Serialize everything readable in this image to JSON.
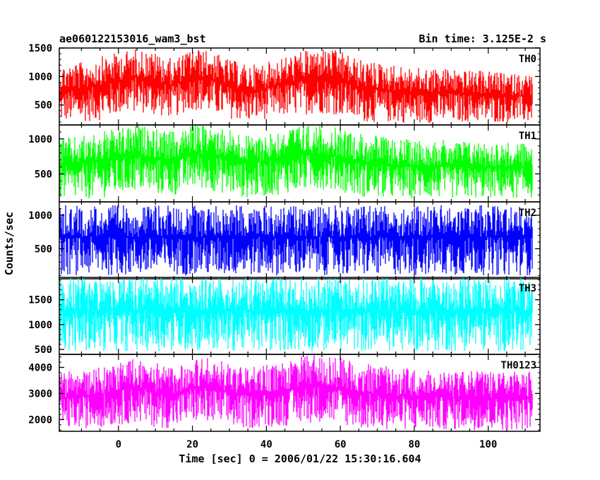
{
  "chart_data": {
    "type": "line",
    "title": "ae060122153016_wam3_bst",
    "subtitle": "Bin time: 3.125E-2 s",
    "xlabel": "Time [sec] 0 = 2006/01/22 15:30:16.604",
    "ylabel": "Counts/sec",
    "xlim": [
      -16,
      114
    ],
    "x_ticks": [
      0,
      20,
      40,
      60,
      80,
      100
    ],
    "x_tick_labels": [
      "0",
      "20",
      "40",
      "60",
      "80",
      "100"
    ],
    "series": [
      {
        "name": "TH0",
        "color": "#ff0000",
        "ylim": [
          150,
          1500
        ],
        "y_ticks": [
          500,
          1000,
          1500
        ],
        "y_tick_labels": [
          "500",
          "1000",
          "1500"
        ],
        "envelope": {
          "x": [
            -16,
            -10,
            -5,
            0,
            5,
            10,
            15,
            20,
            25,
            30,
            35,
            40,
            45,
            50,
            55,
            60,
            65,
            70,
            75,
            80,
            85,
            90,
            95,
            100,
            105,
            112
          ],
          "low": [
            200,
            200,
            230,
            330,
            380,
            300,
            280,
            420,
            350,
            260,
            200,
            250,
            300,
            330,
            350,
            320,
            200,
            190,
            190,
            180,
            180,
            190,
            200,
            190,
            190,
            190
          ],
          "high": [
            1200,
            1250,
            1350,
            1420,
            1500,
            1420,
            1300,
            1500,
            1450,
            1300,
            1200,
            1250,
            1350,
            1450,
            1500,
            1450,
            1300,
            1250,
            1200,
            1150,
            1150,
            1150,
            1100,
            1100,
            1050,
            1050
          ]
        }
      },
      {
        "name": "TH1",
        "color": "#00ff00",
        "ylim": [
          100,
          1200
        ],
        "y_ticks": [
          500,
          1000
        ],
        "y_tick_labels": [
          "500",
          "1000"
        ],
        "envelope": {
          "x": [
            -16,
            -10,
            -5,
            0,
            5,
            10,
            15,
            20,
            25,
            30,
            35,
            40,
            45,
            50,
            55,
            60,
            65,
            70,
            75,
            80,
            85,
            90,
            95,
            100,
            105,
            112
          ],
          "low": [
            130,
            130,
            150,
            200,
            260,
            200,
            180,
            300,
            260,
            200,
            150,
            180,
            220,
            260,
            280,
            250,
            170,
            150,
            150,
            150,
            150,
            150,
            150,
            150,
            150,
            150
          ],
          "high": [
            1000,
            1050,
            1100,
            1150,
            1200,
            1150,
            1100,
            1200,
            1200,
            1150,
            1050,
            1100,
            1150,
            1200,
            1200,
            1150,
            1100,
            1050,
            1000,
            1000,
            1000,
            980,
            980,
            960,
            950,
            950
          ]
        }
      },
      {
        "name": "TH2",
        "color": "#0000ff",
        "ylim": [
          50,
          1200
        ],
        "y_ticks": [
          500,
          1000
        ],
        "y_tick_labels": [
          "500",
          "1000"
        ],
        "envelope": {
          "x": [
            -16,
            112
          ],
          "low": [
            100,
            100
          ],
          "high": [
            1150,
            1150
          ]
        }
      },
      {
        "name": "TH3",
        "color": "#00ffff",
        "ylim": [
          400,
          1950
        ],
        "y_ticks": [
          500,
          1000,
          1500
        ],
        "y_tick_labels": [
          "500",
          "1000",
          "1500"
        ],
        "envelope": {
          "x": [
            -16,
            112
          ],
          "low": [
            460,
            460
          ],
          "high": [
            1950,
            1950
          ]
        }
      },
      {
        "name": "TH0123",
        "color": "#ff00ff",
        "ylim": [
          1550,
          4500
        ],
        "y_ticks": [
          2000,
          3000,
          4000
        ],
        "y_tick_labels": [
          "2000",
          "3000",
          "4000"
        ],
        "envelope": {
          "x": [
            -16,
            -10,
            -5,
            0,
            5,
            10,
            15,
            20,
            25,
            30,
            35,
            40,
            45,
            50,
            55,
            60,
            65,
            70,
            75,
            80,
            85,
            90,
            95,
            100,
            105,
            112
          ],
          "low": [
            1650,
            1650,
            1700,
            1800,
            1850,
            1700,
            1650,
            1900,
            1800,
            1700,
            1650,
            1700,
            1750,
            1850,
            1900,
            1800,
            1650,
            1600,
            1600,
            1600,
            1600,
            1600,
            1600,
            1600,
            1600,
            1600
          ],
          "high": [
            3800,
            3900,
            4000,
            4200,
            4400,
            4200,
            4000,
            4400,
            4350,
            4200,
            4000,
            4100,
            4200,
            4450,
            4500,
            4400,
            4200,
            4100,
            4000,
            3950,
            3950,
            3900,
            3900,
            3850,
            3850,
            3850
          ]
        }
      }
    ]
  }
}
